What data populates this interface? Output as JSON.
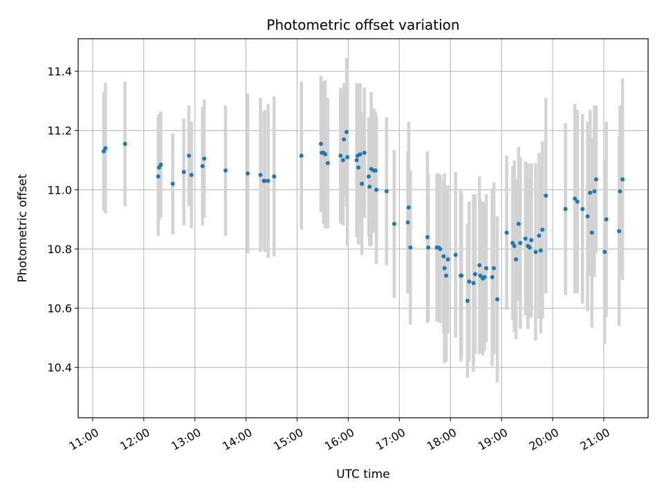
{
  "chart_data": {
    "type": "scatter",
    "title": "Photometric offset variation",
    "xlabel": "UTC time",
    "ylabel": "Photometric offset",
    "xlim": [
      "10:43",
      "21:52"
    ],
    "ylim": [
      10.23,
      11.51
    ],
    "grid": true,
    "x_ticks": [
      "11:00",
      "12:00",
      "13:00",
      "14:00",
      "15:00",
      "16:00",
      "17:00",
      "18:00",
      "19:00",
      "20:00",
      "21:00"
    ],
    "y_ticks": [
      10.4,
      10.6,
      10.8,
      11.0,
      11.2,
      11.4
    ],
    "y_tick_labels": [
      "10.4",
      "10.6",
      "10.8",
      "11.0",
      "11.2",
      "11.4"
    ],
    "marker_color": "#1f77b4",
    "errorbar_color": "#d3d3d3",
    "series": [
      {
        "x": [
          "11:13",
          "11:15",
          "11:38",
          "12:17",
          "12:18",
          "12:20",
          "12:34",
          "12:47",
          "12:53",
          "12:56",
          "13:09",
          "13:11",
          "13:36",
          "14:02",
          "14:17",
          "14:21",
          "14:22",
          "14:26",
          "14:33",
          "15:05",
          "15:28",
          "15:29",
          "15:31",
          "15:33",
          "15:36",
          "15:51",
          "15:54",
          "15:55",
          "15:58",
          "15:59",
          "16:10",
          "16:11",
          "16:12",
          "16:14",
          "16:16",
          "16:19",
          "16:24",
          "16:25",
          "16:27",
          "16:30",
          "16:32",
          "16:33",
          "16:45",
          "16:54",
          "17:10",
          "17:11",
          "17:13",
          "17:33",
          "17:34",
          "17:44",
          "17:46",
          "17:48",
          "17:52",
          "17:53",
          "17:55",
          "17:57",
          "18:06",
          "18:12",
          "18:13",
          "18:20",
          "18:22",
          "18:27",
          "18:29",
          "18:34",
          "18:35",
          "18:38",
          "18:40",
          "18:42",
          "18:49",
          "18:51",
          "18:55",
          "19:06",
          "19:13",
          "19:15",
          "19:17",
          "19:20",
          "19:22",
          "19:28",
          "19:31",
          "19:33",
          "19:35",
          "19:40",
          "19:44",
          "19:46",
          "19:48",
          "19:52",
          "20:15",
          "20:26",
          "20:29",
          "20:35",
          "20:41",
          "20:44",
          "20:46",
          "20:49",
          "20:51",
          "21:01",
          "21:03",
          "21:18",
          "21:19",
          "21:22"
        ],
        "y": [
          11.13,
          11.14,
          11.155,
          11.045,
          11.075,
          11.085,
          11.02,
          11.06,
          11.115,
          11.05,
          11.08,
          11.105,
          11.065,
          11.055,
          11.05,
          11.03,
          11.03,
          11.03,
          11.045,
          11.115,
          11.155,
          11.125,
          11.125,
          11.12,
          11.09,
          11.115,
          11.1,
          11.17,
          11.195,
          11.11,
          11.1,
          11.115,
          11.075,
          11.12,
          11.02,
          11.125,
          11.045,
          11.01,
          11.07,
          11.065,
          11.065,
          11.0,
          10.995,
          10.885,
          10.89,
          10.94,
          10.805,
          10.84,
          10.805,
          10.805,
          10.805,
          10.8,
          10.775,
          10.735,
          10.71,
          10.765,
          10.78,
          10.71,
          10.71,
          10.625,
          10.69,
          10.685,
          10.715,
          10.745,
          10.71,
          10.7,
          10.705,
          10.735,
          10.705,
          10.735,
          10.63,
          10.855,
          10.82,
          10.81,
          10.765,
          10.885,
          10.82,
          10.835,
          10.81,
          10.805,
          10.83,
          10.79,
          10.845,
          10.795,
          10.865,
          10.98,
          10.935,
          10.97,
          10.96,
          10.935,
          10.91,
          10.99,
          10.855,
          10.995,
          11.035,
          10.79,
          10.9,
          10.86,
          10.995,
          11.035
        ],
        "yerr": [
          0.2,
          0.22,
          0.21,
          0.2,
          0.18,
          0.18,
          0.17,
          0.18,
          0.17,
          0.18,
          0.2,
          0.2,
          0.22,
          0.27,
          0.26,
          0.23,
          0.24,
          0.26,
          0.27,
          0.25,
          0.23,
          0.2,
          0.24,
          0.25,
          0.22,
          0.23,
          0.22,
          0.19,
          0.25,
          0.3,
          0.26,
          0.24,
          0.26,
          0.24,
          0.24,
          0.22,
          0.2,
          0.2,
          0.26,
          0.21,
          0.2,
          0.25,
          0.25,
          0.25,
          0.24,
          0.29,
          0.26,
          0.29,
          0.25,
          0.25,
          0.25,
          0.25,
          0.26,
          0.32,
          0.29,
          0.25,
          0.28,
          0.29,
          0.28,
          0.26,
          0.27,
          0.3,
          0.27,
          0.3,
          0.26,
          0.26,
          0.25,
          0.25,
          0.3,
          0.29,
          0.28,
          0.26,
          0.26,
          0.29,
          0.27,
          0.26,
          0.29,
          0.26,
          0.28,
          0.24,
          0.26,
          0.3,
          0.28,
          0.28,
          0.3,
          0.33,
          0.29,
          0.32,
          0.31,
          0.32,
          0.32,
          0.28,
          0.32,
          0.29,
          0.25,
          0.31,
          0.33,
          0.32,
          0.29,
          0.34
        ]
      }
    ]
  }
}
